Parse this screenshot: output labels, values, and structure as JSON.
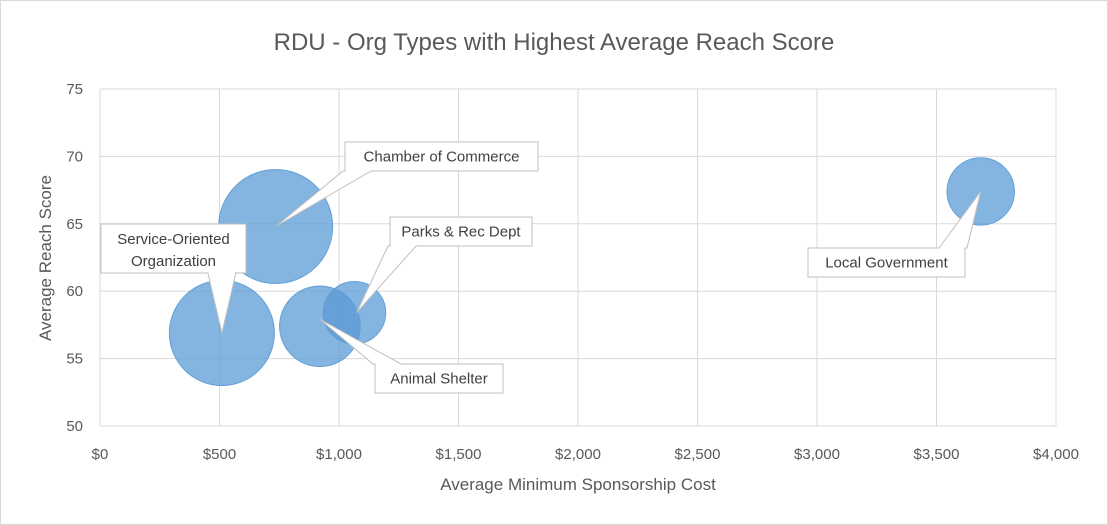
{
  "chart_data": {
    "type": "bubble",
    "title": "RDU - Org Types with Highest Average Reach Score",
    "xlabel": "Average Minimum Sponsorship Cost",
    "ylabel": "Average Reach Score",
    "xlim": [
      0,
      4000
    ],
    "ylim": [
      50,
      75
    ],
    "x_ticks": [
      0,
      500,
      1000,
      1500,
      2000,
      2500,
      3000,
      3500,
      4000
    ],
    "x_tick_labels": [
      "$0",
      "$500",
      "$1,000",
      "$1,500",
      "$2,000",
      "$2,500",
      "$3,000",
      "$3,500",
      "$4,000"
    ],
    "y_ticks": [
      50,
      55,
      60,
      65,
      70,
      75
    ],
    "y_tick_labels": [
      "50",
      "55",
      "60",
      "65",
      "70",
      "75"
    ],
    "grid": true,
    "legend": "none",
    "color": "#5b9bd5",
    "points": [
      {
        "label": "Chamber of Commerce",
        "x": 735,
        "y": 64.8,
        "size": 1.0
      },
      {
        "label": "Service-Oriented Organization",
        "x": 510,
        "y": 56.9,
        "size": 0.85
      },
      {
        "label": "Animal Shelter",
        "x": 920,
        "y": 57.4,
        "size": 0.5
      },
      {
        "label": "Parks & Rec Dept",
        "x": 1065,
        "y": 58.4,
        "size": 0.3
      },
      {
        "label": "Local Government",
        "x": 3685,
        "y": 67.4,
        "size": 0.35
      }
    ]
  }
}
